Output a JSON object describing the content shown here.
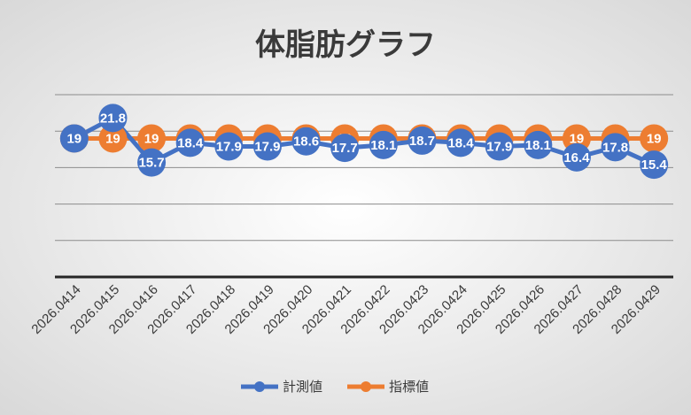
{
  "chart_data": {
    "type": "line",
    "title": "体脂肪グラフ",
    "categories": [
      "2026.0414",
      "2026.0415",
      "2026.0416",
      "2026.0417",
      "2026.0418",
      "2026.0419",
      "2026.0420",
      "2026.0421",
      "2026.0422",
      "2026.0423",
      "2026.0424",
      "2026.0425",
      "2026.0426",
      "2026.0427",
      "2026.0428",
      "2026.0429"
    ],
    "series": [
      {
        "name": "計測値",
        "color": "#4472c4",
        "values": [
          19,
          21.8,
          15.7,
          18.4,
          17.9,
          17.9,
          18.6,
          17.7,
          18.1,
          18.7,
          18.4,
          17.9,
          18.1,
          16.4,
          17.8,
          15.4
        ]
      },
      {
        "name": "指標値",
        "color": "#ed7d31",
        "values": [
          19,
          19,
          19,
          19,
          19,
          19,
          19,
          19,
          19,
          19,
          19,
          19,
          19,
          19,
          19,
          19
        ]
      }
    ],
    "ylim": [
      0,
      25
    ],
    "gridlines": true,
    "legend_position": "bottom"
  }
}
